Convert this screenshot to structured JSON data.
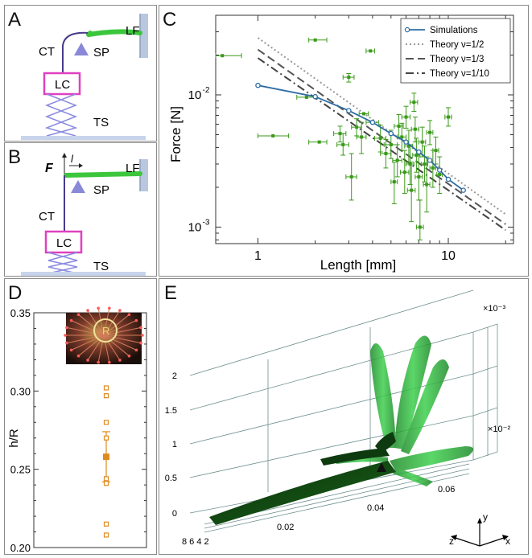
{
  "panels": {
    "a": {
      "label": "A",
      "lf": "LF",
      "ct": "CT",
      "sp": "SP",
      "lc": "LC",
      "ts": "TS"
    },
    "b": {
      "label": "B",
      "f": "F",
      "l": "l",
      "lf": "LF",
      "ct": "CT",
      "sp": "SP",
      "lc": "LC",
      "ts": "TS"
    },
    "c": {
      "label": "C"
    },
    "d": {
      "label": "D",
      "inset_label": "R"
    },
    "e": {
      "label": "E",
      "z_exp": "×10⁻³",
      "x_exp": "×10⁻²",
      "vert_ticks": [
        "0",
        "0.5",
        "1",
        "1.5",
        "2"
      ],
      "x_ticks": [
        "0.02",
        "0.04",
        "0.06"
      ],
      "depth_ticks": "8 6 4 2",
      "axes": {
        "x": "x",
        "y": "y",
        "z": "z"
      }
    }
  },
  "chart_data": [
    {
      "type": "scatter",
      "panel": "C",
      "title": "",
      "xlabel": "Length [mm]",
      "ylabel": "Force [N]",
      "xscale": "log",
      "yscale": "log",
      "xlim": [
        0.6,
        22
      ],
      "ylim": [
        0.00075,
        0.04
      ],
      "xticks": [
        {
          "v": 1,
          "label": "1"
        },
        {
          "v": 10,
          "label": "10"
        }
      ],
      "yticks": [
        {
          "v": 0.001,
          "label": "10",
          "exp": "-3"
        },
        {
          "v": 0.01,
          "label": "10",
          "exp": "-2"
        }
      ],
      "legend_position": "top-right",
      "legend": [
        {
          "name": "Simulations",
          "style": "line-marker"
        },
        {
          "name": "Theory ν=1/2",
          "style": "dotted"
        },
        {
          "name": "Theory ν=1/3",
          "style": "dashed"
        },
        {
          "name": "Theory ν=1/10",
          "style": "dashdot"
        }
      ],
      "series": [
        {
          "kind": "line",
          "color": "#2e6da4",
          "x": [
            1,
            2,
            3,
            4,
            5,
            6,
            7,
            8,
            9,
            10,
            12
          ],
          "y": [
            0.0118,
            0.0097,
            0.0076,
            0.0062,
            0.0051,
            0.0044,
            0.0037,
            0.0032,
            0.0027,
            0.0023,
            0.0019
          ]
        },
        {
          "kind": "theory",
          "color": "#999999",
          "dash": "dotted",
          "x": [
            1,
            20
          ],
          "y": [
            0.027,
            0.00125
          ]
        },
        {
          "kind": "theory",
          "color": "#555555",
          "dash": "dashed",
          "x": [
            1,
            20
          ],
          "y": [
            0.022,
            0.00105
          ]
        },
        {
          "kind": "theory",
          "color": "#444444",
          "dash": "dashdot",
          "x": [
            1,
            20
          ],
          "y": [
            0.019,
            0.00095
          ]
        },
        {
          "kind": "measurements",
          "color": "#3a9a1a",
          "points": [
            {
              "x": 0.65,
              "y": 0.0198,
              "xlo": 0.6,
              "xhi": 0.82,
              "ylo": 0.0198,
              "yhi": 0.0198
            },
            {
              "x": 1.2,
              "y": 0.0049,
              "xlo": 1.0,
              "xhi": 1.45,
              "ylo": 0.0049,
              "yhi": 0.0049
            },
            {
              "x": 1.8,
              "y": 0.0096,
              "xlo": 1.6,
              "xhi": 2.0,
              "ylo": 0.0096,
              "yhi": 0.0096
            },
            {
              "x": 2.0,
              "y": 0.026,
              "xlo": 1.85,
              "xhi": 2.3,
              "ylo": 0.026,
              "yhi": 0.026
            },
            {
              "x": 2.1,
              "y": 0.0044,
              "xlo": 1.85,
              "xhi": 2.3,
              "ylo": 0.0044,
              "yhi": 0.0044
            },
            {
              "x": 3.0,
              "y": 0.0136,
              "xlo": 2.8,
              "xhi": 3.2,
              "ylo": 0.0125,
              "yhi": 0.0145
            },
            {
              "x": 3.6,
              "y": 0.0072,
              "xlo": 3.4,
              "xhi": 3.8,
              "ylo": 0.0072,
              "yhi": 0.0072
            },
            {
              "x": 3.9,
              "y": 0.0215,
              "xlo": 3.7,
              "xhi": 4.1,
              "ylo": 0.0215,
              "yhi": 0.0215
            },
            {
              "x": 4.0,
              "y": 0.0062,
              "xlo": 3.7,
              "xhi": 4.3,
              "ylo": 0.0062,
              "yhi": 0.0062
            },
            {
              "x": 2.7,
              "y": 0.0051,
              "xlo": 2.5,
              "xhi": 2.9,
              "ylo": 0.0044,
              "yhi": 0.0058
            },
            {
              "x": 2.8,
              "y": 0.0042,
              "xlo": 2.6,
              "xhi": 3.0,
              "ylo": 0.0035,
              "yhi": 0.0051
            },
            {
              "x": 3.1,
              "y": 0.0024,
              "xlo": 2.9,
              "xhi": 3.3,
              "ylo": 0.0016,
              "yhi": 0.0036
            },
            {
              "x": 3.3,
              "y": 0.0057,
              "xlo": 3.1,
              "xhi": 3.5,
              "ylo": 0.0049,
              "yhi": 0.0066
            },
            {
              "x": 3.5,
              "y": 0.0048,
              "xlo": 3.3,
              "xhi": 3.7,
              "ylo": 0.0036,
              "yhi": 0.0062
            },
            {
              "x": 4.4,
              "y": 0.0047,
              "xlo": 4.1,
              "xhi": 4.7,
              "ylo": 0.0037,
              "yhi": 0.0059
            },
            {
              "x": 4.7,
              "y": 0.0036,
              "xlo": 4.4,
              "xhi": 5.0,
              "ylo": 0.0028,
              "yhi": 0.0046
            },
            {
              "x": 5.0,
              "y": 0.0042,
              "xlo": 4.6,
              "xhi": 5.4,
              "ylo": 0.0033,
              "yhi": 0.0054
            },
            {
              "x": 5.2,
              "y": 0.0022,
              "xlo": 5.0,
              "xhi": 5.4,
              "ylo": 0.0015,
              "yhi": 0.0031
            },
            {
              "x": 5.4,
              "y": 0.0032,
              "xlo": 5.1,
              "xhi": 5.7,
              "ylo": 0.0024,
              "yhi": 0.0042
            },
            {
              "x": 5.5,
              "y": 0.0058,
              "xlo": 5.2,
              "xhi": 5.8,
              "ylo": 0.0047,
              "yhi": 0.0071
            },
            {
              "x": 5.7,
              "y": 0.0048,
              "xlo": 5.4,
              "xhi": 6.0,
              "ylo": 0.0038,
              "yhi": 0.0061
            },
            {
              "x": 5.9,
              "y": 0.0026,
              "xlo": 5.6,
              "xhi": 6.2,
              "ylo": 0.0018,
              "yhi": 0.0038
            },
            {
              "x": 6.0,
              "y": 0.0068,
              "xlo": 5.7,
              "xhi": 6.3,
              "ylo": 0.0056,
              "yhi": 0.0082
            },
            {
              "x": 6.2,
              "y": 0.0041,
              "xlo": 5.9,
              "xhi": 6.5,
              "ylo": 0.0031,
              "yhi": 0.0054
            },
            {
              "x": 6.3,
              "y": 0.003,
              "xlo": 6.0,
              "xhi": 6.6,
              "ylo": 0.0021,
              "yhi": 0.0042
            },
            {
              "x": 6.4,
              "y": 0.0019,
              "xlo": 6.1,
              "xhi": 6.7,
              "ylo": 0.0011,
              "yhi": 0.0031
            },
            {
              "x": 6.6,
              "y": 0.0088,
              "xlo": 6.3,
              "xhi": 6.9,
              "ylo": 0.0075,
              "yhi": 0.0103
            },
            {
              "x": 6.7,
              "y": 0.0055,
              "xlo": 6.4,
              "xhi": 7.0,
              "ylo": 0.0044,
              "yhi": 0.0068
            },
            {
              "x": 6.8,
              "y": 0.0035,
              "xlo": 6.5,
              "xhi": 7.1,
              "ylo": 0.0026,
              "yhi": 0.0047
            },
            {
              "x": 7.0,
              "y": 0.0024,
              "xlo": 6.7,
              "xhi": 7.3,
              "ylo": 0.0016,
              "yhi": 0.0036
            },
            {
              "x": 7.1,
              "y": 0.001,
              "xlo": 6.8,
              "xhi": 7.4,
              "ylo": 0.0008,
              "yhi": 0.0016
            },
            {
              "x": 7.3,
              "y": 0.0044,
              "xlo": 7.0,
              "xhi": 7.6,
              "ylo": 0.0034,
              "yhi": 0.0057
            },
            {
              "x": 7.5,
              "y": 0.003,
              "xlo": 7.2,
              "xhi": 7.8,
              "ylo": 0.0022,
              "yhi": 0.0041
            },
            {
              "x": 7.7,
              "y": 0.0021,
              "xlo": 7.4,
              "xhi": 8.0,
              "ylo": 0.0013,
              "yhi": 0.0034
            },
            {
              "x": 8.0,
              "y": 0.0052,
              "xlo": 7.7,
              "xhi": 8.3,
              "ylo": 0.0042,
              "yhi": 0.0064
            },
            {
              "x": 8.3,
              "y": 0.0028,
              "xlo": 8.0,
              "xhi": 8.6,
              "ylo": 0.002,
              "yhi": 0.0038
            },
            {
              "x": 8.6,
              "y": 0.0038,
              "xlo": 8.3,
              "xhi": 8.9,
              "ylo": 0.003,
              "yhi": 0.0048
            },
            {
              "x": 9.0,
              "y": 0.0025,
              "xlo": 8.7,
              "xhi": 9.3,
              "ylo": 0.0018,
              "yhi": 0.0034
            },
            {
              "x": 10.0,
              "y": 0.0068,
              "xlo": 9.6,
              "xhi": 10.4,
              "ylo": 0.0058,
              "yhi": 0.008
            }
          ]
        }
      ]
    },
    {
      "type": "scatter",
      "panel": "D",
      "title": "",
      "xlabel": "",
      "ylabel": "h/R",
      "ylim": [
        0.2,
        0.35
      ],
      "yticks": [
        "0.20",
        "0.25",
        "0.30",
        "0.35"
      ],
      "points": [
        0.302,
        0.297,
        0.28,
        0.27,
        0.244,
        0.241,
        0.215,
        0.208
      ],
      "mean": 0.258,
      "err_lo": 0.242,
      "err_hi": 0.274,
      "color": "#e08a1e"
    }
  ]
}
